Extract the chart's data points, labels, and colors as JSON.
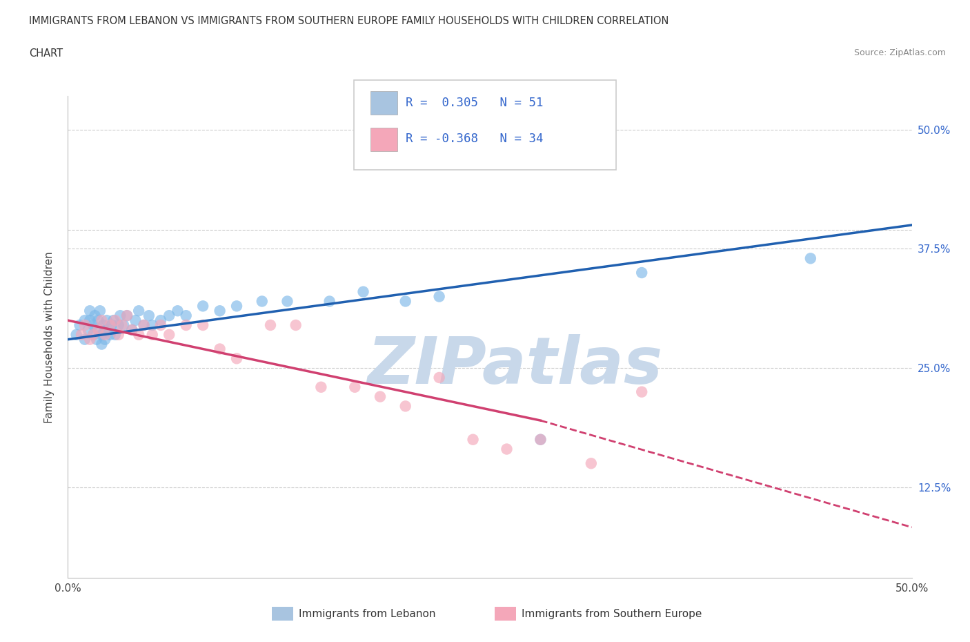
{
  "title_line1": "IMMIGRANTS FROM LEBANON VS IMMIGRANTS FROM SOUTHERN EUROPE FAMILY HOUSEHOLDS WITH CHILDREN CORRELATION",
  "title_line2": "CHART",
  "source_text": "Source: ZipAtlas.com",
  "ylabel": "Family Households with Children",
  "xlim": [
    0.0,
    0.5
  ],
  "ylim": [
    0.03,
    0.535
  ],
  "xticks": [
    0.0,
    0.1,
    0.2,
    0.3,
    0.4,
    0.5
  ],
  "xtick_labels": [
    "0.0%",
    "",
    "",
    "",
    "",
    "50.0%"
  ],
  "yticks": [
    0.125,
    0.25,
    0.375,
    0.5
  ],
  "ytick_labels": [
    "12.5%",
    "25.0%",
    "37.5%",
    "50.0%"
  ],
  "legend_color1": "#a8c4e0",
  "legend_color2": "#f4a7b9",
  "scatter_color_blue": "#7db8e8",
  "scatter_color_pink": "#f4a7b9",
  "trend_color_blue": "#2060b0",
  "trend_color_pink": "#d04070",
  "watermark_text": "ZIPatlas",
  "watermark_color": "#c8d8ea",
  "blue_x": [
    0.005,
    0.007,
    0.01,
    0.01,
    0.012,
    0.013,
    0.013,
    0.015,
    0.015,
    0.016,
    0.017,
    0.018,
    0.018,
    0.019,
    0.02,
    0.02,
    0.021,
    0.022,
    0.022,
    0.023,
    0.024,
    0.025,
    0.026,
    0.027,
    0.028,
    0.03,
    0.031,
    0.033,
    0.035,
    0.038,
    0.04,
    0.042,
    0.045,
    0.048,
    0.05,
    0.055,
    0.06,
    0.065,
    0.07,
    0.08,
    0.09,
    0.1,
    0.115,
    0.13,
    0.155,
    0.175,
    0.2,
    0.22,
    0.28,
    0.34,
    0.44
  ],
  "blue_y": [
    0.285,
    0.295,
    0.28,
    0.3,
    0.29,
    0.3,
    0.31,
    0.285,
    0.295,
    0.305,
    0.28,
    0.29,
    0.3,
    0.31,
    0.275,
    0.285,
    0.295,
    0.28,
    0.29,
    0.3,
    0.29,
    0.285,
    0.295,
    0.3,
    0.285,
    0.295,
    0.305,
    0.295,
    0.305,
    0.29,
    0.3,
    0.31,
    0.295,
    0.305,
    0.295,
    0.3,
    0.305,
    0.31,
    0.305,
    0.315,
    0.31,
    0.315,
    0.32,
    0.32,
    0.32,
    0.33,
    0.32,
    0.325,
    0.175,
    0.35,
    0.365
  ],
  "pink_x": [
    0.008,
    0.01,
    0.013,
    0.015,
    0.018,
    0.02,
    0.022,
    0.025,
    0.028,
    0.03,
    0.032,
    0.035,
    0.038,
    0.042,
    0.045,
    0.05,
    0.055,
    0.06,
    0.07,
    0.08,
    0.09,
    0.1,
    0.12,
    0.135,
    0.15,
    0.17,
    0.185,
    0.2,
    0.22,
    0.24,
    0.26,
    0.28,
    0.31,
    0.34
  ],
  "pink_y": [
    0.285,
    0.295,
    0.28,
    0.285,
    0.29,
    0.3,
    0.285,
    0.295,
    0.3,
    0.285,
    0.295,
    0.305,
    0.29,
    0.285,
    0.295,
    0.285,
    0.295,
    0.285,
    0.295,
    0.295,
    0.27,
    0.26,
    0.295,
    0.295,
    0.23,
    0.23,
    0.22,
    0.21,
    0.24,
    0.175,
    0.165,
    0.175,
    0.15,
    0.225
  ],
  "blue_trend_x0": 0.0,
  "blue_trend_y0": 0.28,
  "blue_trend_x1": 0.5,
  "blue_trend_y1": 0.4,
  "pink_trend_x0": 0.0,
  "pink_trend_y0": 0.3,
  "pink_trend_solid_x1": 0.28,
  "pink_trend_solid_y1": 0.195,
  "pink_trend_dashed_x1": 0.5,
  "pink_trend_dashed_y1": 0.083,
  "dashed_line_y": 0.395
}
